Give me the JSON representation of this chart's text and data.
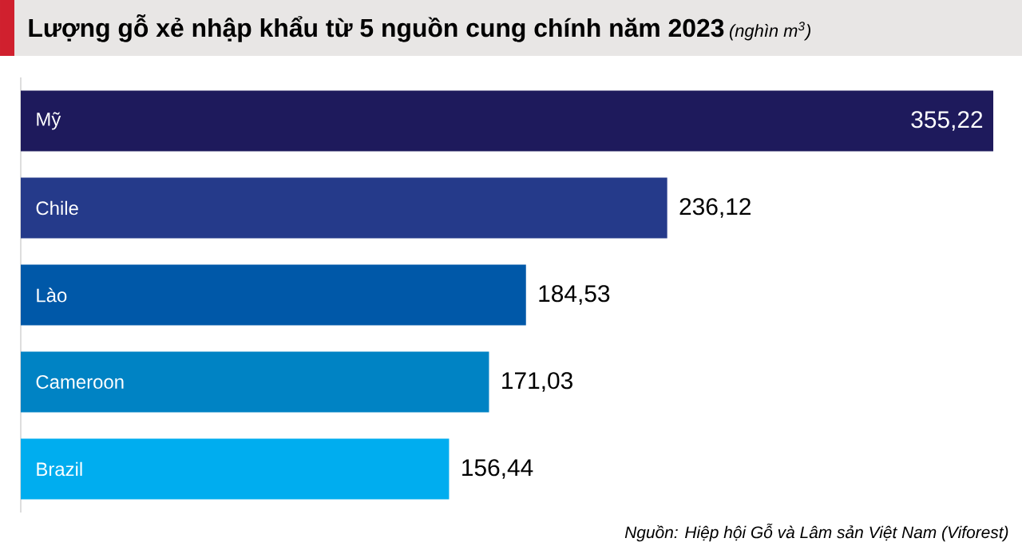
{
  "chart_data": {
    "type": "bar",
    "orientation": "horizontal",
    "title": "Lượng gỗ xẻ nhập khẩu từ 5 nguồn cung chính năm 2023",
    "subtitle": "(nghìn m$^{3}$)",
    "categories": [
      "Mỹ",
      "Chile",
      "Lào",
      "Cameroon",
      "Brazil"
    ],
    "values": [
      355.22,
      236.12,
      184.53,
      171.03,
      156.44
    ],
    "value_labels": [
      "355,22",
      "236,12",
      "184,53",
      "171,03",
      "156,44"
    ],
    "colors": [
      "#1e1a5c",
      "#253a8a",
      "#0058a8",
      "#0083c4",
      "#00adef"
    ],
    "annotations": [
      "Nguồn: Hiệp hội Gỗ và Lâm sản Việt Nam (Viforest)"
    ]
  }
}
